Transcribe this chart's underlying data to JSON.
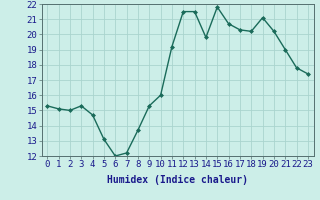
{
  "x": [
    0,
    1,
    2,
    3,
    4,
    5,
    6,
    7,
    8,
    9,
    10,
    11,
    12,
    13,
    14,
    15,
    16,
    17,
    18,
    19,
    20,
    21,
    22,
    23
  ],
  "y": [
    15.3,
    15.1,
    15.0,
    15.3,
    14.7,
    13.1,
    12.0,
    12.2,
    13.7,
    15.3,
    16.0,
    19.2,
    21.5,
    21.5,
    19.8,
    21.8,
    20.7,
    20.3,
    20.2,
    21.1,
    20.2,
    19.0,
    17.8,
    17.4
  ],
  "line_color": "#1a6b5a",
  "marker": "D",
  "marker_size": 2,
  "bg_color": "#cceee8",
  "grid_color": "#aad4ce",
  "xlabel": "Humidex (Indice chaleur)",
  "ylim": [
    12,
    22
  ],
  "xlim": [
    -0.5,
    23.5
  ],
  "yticks": [
    12,
    13,
    14,
    15,
    16,
    17,
    18,
    19,
    20,
    21,
    22
  ],
  "xticks": [
    0,
    1,
    2,
    3,
    4,
    5,
    6,
    7,
    8,
    9,
    10,
    11,
    12,
    13,
    14,
    15,
    16,
    17,
    18,
    19,
    20,
    21,
    22,
    23
  ],
  "label_fontsize": 7,
  "tick_fontsize": 6.5,
  "xlabel_color": "#1a1a8c",
  "line_width": 1.0
}
